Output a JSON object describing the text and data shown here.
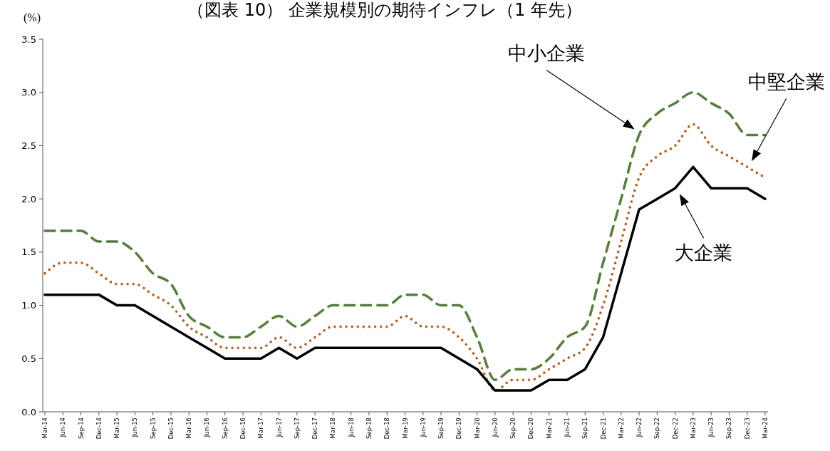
{
  "chart_data": {
    "type": "line",
    "title": "（図表 10） 企業規模別の期待インフレ（1 年先）",
    "ylabel": "(%)",
    "categories": [
      "Mar-14",
      "Jun-14",
      "Sep-14",
      "Dec-14",
      "Mar-15",
      "Jun-15",
      "Sep-15",
      "Dec-15",
      "Mar-16",
      "Jun-16",
      "Sep-16",
      "Dec-16",
      "Mar-17",
      "Jun-17",
      "Sep-17",
      "Dec-17",
      "Mar-18",
      "Jun-18",
      "Sep-18",
      "Dec-18",
      "Mar-19",
      "Jun-19",
      "Sep-19",
      "Dec-19",
      "Mar-20",
      "Jun-20",
      "Sep-20",
      "Dec-20",
      "Mar-21",
      "Jun-21",
      "Sep-21",
      "Dec-21",
      "Mar-22",
      "Jun-22",
      "Sep-22",
      "Dec-22",
      "Mar-23",
      "Jun-23",
      "Sep-23",
      "Dec-23",
      "Mar-24"
    ],
    "series": [
      {
        "name": "中小企業",
        "color": "#538135",
        "line_style": "dashed",
        "values": [
          1.7,
          1.7,
          1.7,
          1.6,
          1.6,
          1.5,
          1.3,
          1.2,
          0.9,
          0.8,
          0.7,
          0.7,
          0.8,
          0.9,
          0.8,
          0.9,
          1.0,
          1.0,
          1.0,
          1.0,
          1.1,
          1.1,
          1.0,
          1.0,
          0.7,
          0.3,
          0.4,
          0.4,
          0.5,
          0.7,
          0.8,
          1.4,
          2.0,
          2.6,
          2.8,
          2.9,
          3.0,
          2.9,
          2.8,
          2.6,
          2.6
        ]
      },
      {
        "name": "中堅企業",
        "color": "#c55a11",
        "line_style": "dotted",
        "values": [
          1.3,
          1.4,
          1.4,
          1.3,
          1.2,
          1.2,
          1.1,
          1.0,
          0.8,
          0.7,
          0.6,
          0.6,
          0.6,
          0.7,
          0.6,
          0.7,
          0.8,
          0.8,
          0.8,
          0.8,
          0.9,
          0.8,
          0.8,
          0.7,
          0.5,
          0.2,
          0.3,
          0.3,
          0.4,
          0.5,
          0.6,
          1.0,
          1.6,
          2.2,
          2.4,
          2.5,
          2.7,
          2.5,
          2.4,
          2.3,
          2.2
        ]
      },
      {
        "name": "大企業",
        "color": "#000000",
        "line_style": "solid",
        "values": [
          1.1,
          1.1,
          1.1,
          1.1,
          1.0,
          1.0,
          0.9,
          0.8,
          0.7,
          0.6,
          0.5,
          0.5,
          0.5,
          0.6,
          0.5,
          0.6,
          0.6,
          0.6,
          0.6,
          0.6,
          0.6,
          0.6,
          0.6,
          0.5,
          0.4,
          0.2,
          0.2,
          0.2,
          0.3,
          0.3,
          0.4,
          0.7,
          1.3,
          1.9,
          2.0,
          2.1,
          2.3,
          2.1,
          2.1,
          2.1,
          2.0
        ]
      }
    ],
    "ylim": [
      0,
      3.5
    ],
    "yticks": [
      {
        "value": 0,
        "label": "0.0"
      },
      {
        "value": 0.5,
        "label": "0.5"
      },
      {
        "value": 1,
        "label": "1.0"
      },
      {
        "value": 1.5,
        "label": "1.5"
      },
      {
        "value": 2,
        "label": "2.0"
      },
      {
        "value": 2.5,
        "label": "2.5"
      },
      {
        "value": 3,
        "label": "3.0"
      },
      {
        "value": 3.5,
        "label": "3.5"
      }
    ],
    "grid": false,
    "marker": "none"
  }
}
